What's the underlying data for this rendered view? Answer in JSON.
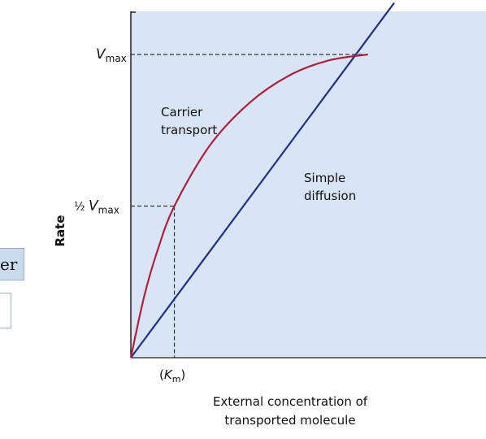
{
  "fragment_text": "er",
  "chart_data": {
    "type": "line",
    "xlabel": [
      "External concentration of",
      "transported molecule"
    ],
    "ylabel": "Rate",
    "xlim": [
      0,
      1
    ],
    "ylim": [
      0,
      1
    ],
    "grid": false,
    "vmax": {
      "y": 1.0,
      "label_main": "V",
      "label_sub": "max"
    },
    "half_vmax": {
      "y": 0.5,
      "label_prefix": "½ ",
      "label_main": "V",
      "label_sub": "max"
    },
    "km": {
      "x": 0.1653,
      "label_open": "(",
      "label_main": "K",
      "label_sub": "m",
      "label_close": ")"
    },
    "series": [
      {
        "name": "Carrier transport",
        "label_lines": [
          "Carrier",
          "transport"
        ],
        "type": "saturating",
        "color": "#b0203a",
        "points": [
          [
            0,
            0
          ],
          [
            0.05,
            0.2
          ],
          [
            0.1,
            0.35
          ],
          [
            0.1653,
            0.5
          ],
          [
            0.3,
            0.7
          ],
          [
            0.45,
            0.84
          ],
          [
            0.6,
            0.93
          ],
          [
            0.75,
            0.98
          ],
          [
            0.9,
            1.0
          ]
        ]
      },
      {
        "name": "Simple diffusion",
        "label_lines": [
          "Simple",
          "diffusion"
        ],
        "type": "linear",
        "color": "#1f2f8a",
        "points": [
          [
            0,
            0
          ],
          [
            1.0,
            1.17
          ]
        ]
      }
    ],
    "colors": {
      "plot_background": "#d8e5f4",
      "vmax_guide": "#333333"
    }
  }
}
